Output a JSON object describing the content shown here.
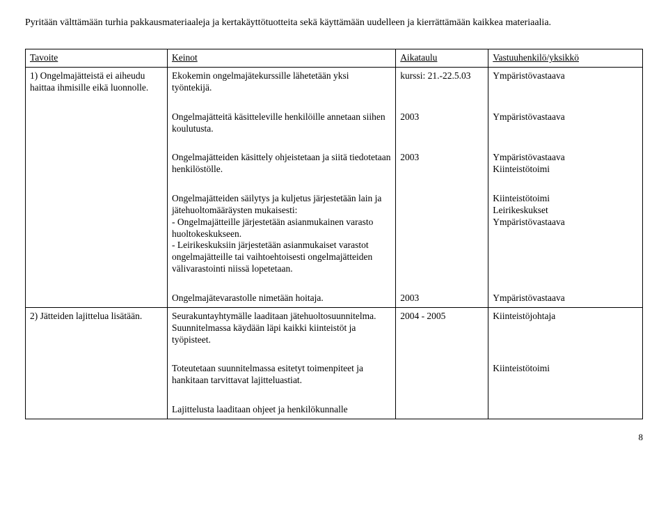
{
  "intro": "Pyritään välttämään turhia pakkausmateriaaleja ja kertakäyttötuotteita sekä käyttämään uudelleen ja kierrättämään kaikkea materiaalia.",
  "headers": {
    "tavoite": "Tavoite",
    "keinot": "Keinot",
    "aikataulu": "Aikataulu",
    "vastuu": "Vastuuhenkilö/yksikkö"
  },
  "rows": [
    {
      "tavoite": "1) Ongelmajätteistä ei aiheudu haittaa ihmisille eikä luonnolle.",
      "keinot": "Ekokemin ongelmajätekurssille lähetetään yksi työntekijä.",
      "aikataulu": "kurssi: 21.-22.5.03",
      "vastuu": "Ympäristövastaava"
    },
    {
      "tavoite": "",
      "keinot": "Ongelmajätteitä käsitteleville henkilöille annetaan siihen koulutusta.",
      "aikataulu": "2003",
      "vastuu": "Ympäristövastaava"
    },
    {
      "tavoite": "",
      "keinot": "Ongelmajätteiden käsittely ohjeistetaan ja siitä tiedotetaan henkilöstölle.",
      "aikataulu": "2003",
      "vastuu": "Ympäristövastaava\nKiinteistötoimi"
    },
    {
      "tavoite": "",
      "keinot": "Ongelmajätteiden säilytys ja kuljetus järjestetään lain ja jätehuoltomääräysten mukaisesti:\n- Ongelmajätteille järjestetään asianmukainen varasto huoltokeskukseen.\n- Leirikeskuksiin järjestetään asianmukaiset varastot ongelmajätteille tai vaihtoehtoisesti ongelmajätteiden välivarastointi niissä lopetetaan.",
      "aikataulu": "",
      "vastuu": "Kiinteistötoimi\nLeirikeskukset\nYmpäristövastaava"
    },
    {
      "tavoite": "",
      "keinot": "Ongelmajätevarastolle nimetään hoitaja.",
      "aikataulu": "2003",
      "vastuu": "Ympäristövastaava"
    },
    {
      "tavoite": "2) Jätteiden lajittelua lisätään.",
      "keinot": "Seurakuntayhtymälle laaditaan jätehuoltosuunnitelma. Suunnitelmassa käydään läpi kaikki kiinteistöt ja työpisteet.",
      "aikataulu": "2004 - 2005",
      "vastuu": "Kiinteistöjohtaja"
    },
    {
      "tavoite": "",
      "keinot": "Toteutetaan suunnitelmassa esitetyt toimenpiteet ja hankitaan tarvittavat lajitteluastiat.",
      "aikataulu": "",
      "vastuu": "Kiinteistötoimi"
    },
    {
      "tavoite": "",
      "keinot": "Lajittelusta laaditaan ohjeet ja henkilökunnalle",
      "aikataulu": "",
      "vastuu": ""
    }
  ],
  "aikataulu_bottom_for_row4": "2003",
  "pagenum": "8"
}
